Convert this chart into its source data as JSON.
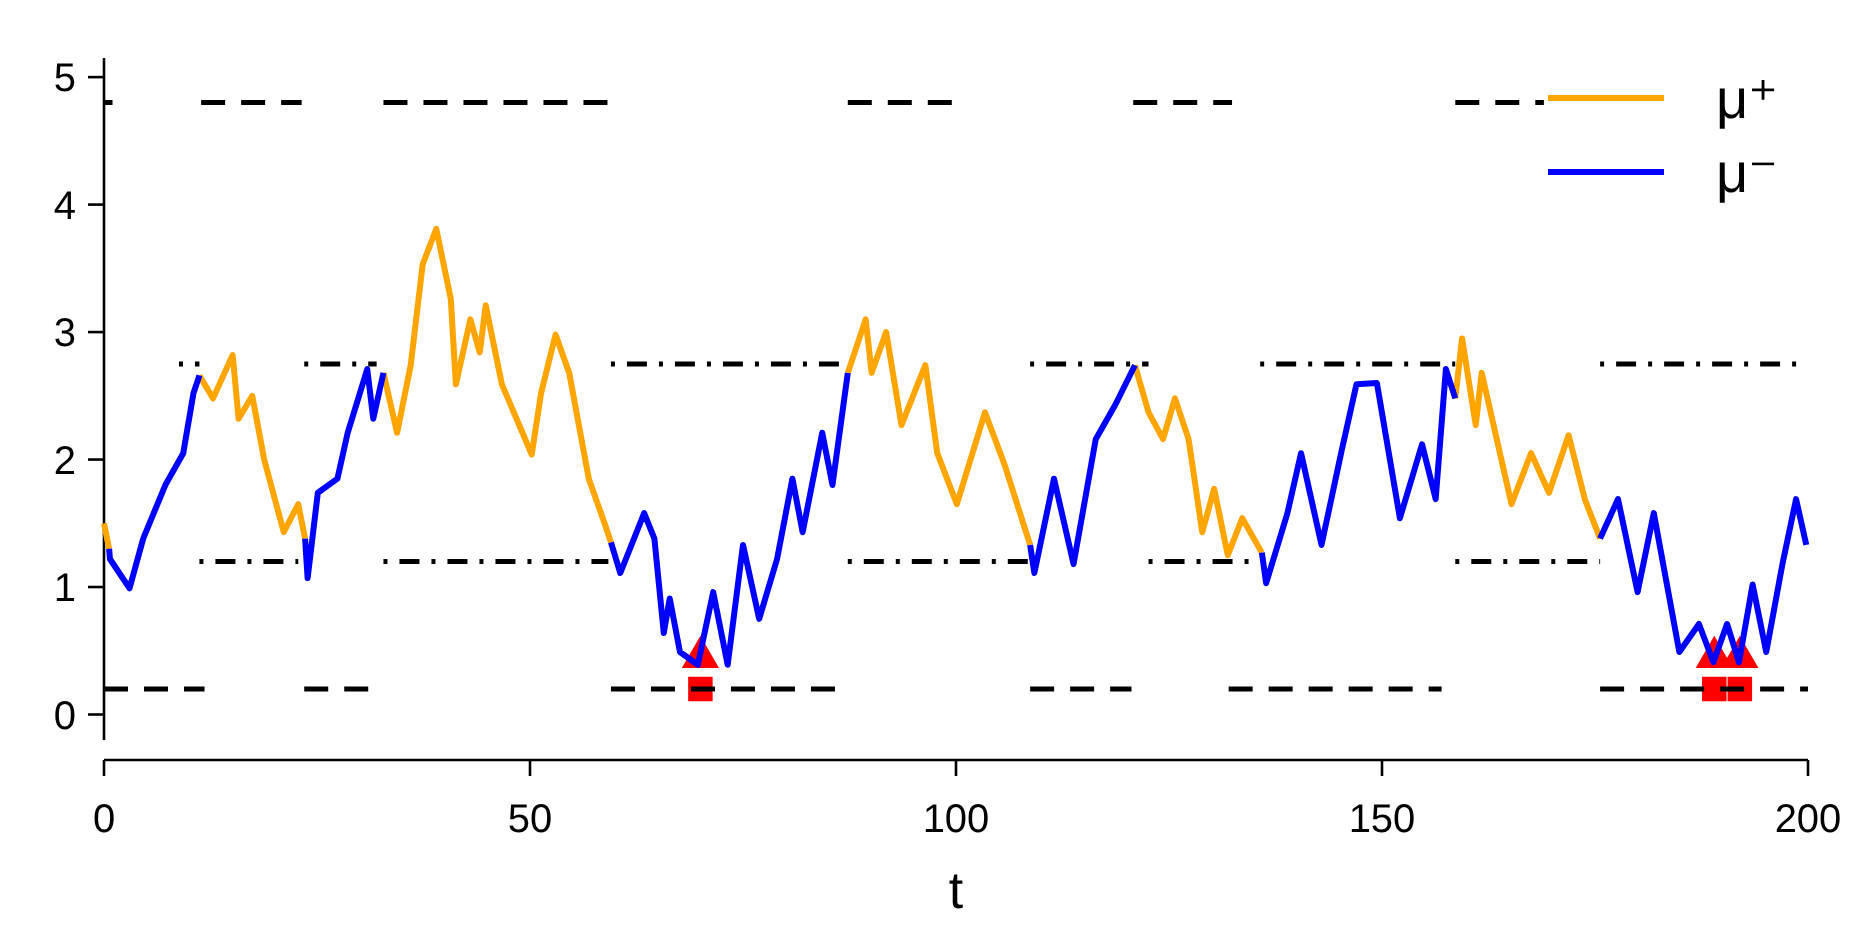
{
  "chart_data": {
    "type": "line",
    "xlabel": "t",
    "xlim": [
      0,
      200
    ],
    "xticks": [
      0,
      50,
      100,
      150,
      200
    ],
    "ylim": [
      -0.2,
      5.15
    ],
    "yticks": [
      0,
      1,
      2,
      3,
      4,
      5
    ],
    "grid": false,
    "legend": "top right",
    "line_style": "solid",
    "marker": "none",
    "series": [
      {
        "name": "μ⁺",
        "color": "#ffa500",
        "x": [
          0,
          0.6,
          1,
          11.2,
          12.8,
          15.1,
          15.8,
          17.4,
          18.8,
          21.1,
          22.8,
          23.6,
          24,
          32.8,
          34.4,
          36,
          37.4,
          39,
          40.7,
          41.3,
          43,
          44.1,
          44.8,
          46.7,
          50.2,
          51.3,
          53,
          54.6,
          56.9,
          58.8,
          59.5,
          60,
          87.3,
          89.4,
          90.1,
          91.8,
          93.6,
          96.4,
          97.8,
          100.1,
          103.4,
          105.7,
          108.7,
          109,
          121,
          122.6,
          124.3,
          125.7,
          127.3,
          128.9,
          130.3,
          131.9,
          133.6,
          135.9,
          136,
          158.6,
          159.4,
          161,
          161.7,
          165.2,
          167.5,
          169.6,
          171.9,
          173.8,
          175.6
        ],
        "values": [
          1.5,
          1.3,
          null,
          2.66,
          2.48,
          2.82,
          2.32,
          2.5,
          2.0,
          1.43,
          1.65,
          1.38,
          null,
          2.68,
          2.21,
          2.74,
          3.53,
          3.81,
          3.26,
          2.59,
          3.1,
          2.84,
          3.21,
          2.59,
          2.04,
          2.52,
          2.98,
          2.68,
          1.85,
          1.49,
          1.35,
          null,
          2.68,
          3.1,
          2.68,
          3.0,
          2.27,
          2.74,
          2.05,
          1.65,
          2.37,
          1.96,
          1.33,
          null,
          2.74,
          2.37,
          2.16,
          2.48,
          2.16,
          1.43,
          1.77,
          1.25,
          1.54,
          1.27,
          null,
          2.48,
          2.95,
          2.27,
          2.68,
          1.65,
          2.05,
          1.74,
          2.19,
          1.69,
          1.38
        ]
      },
      {
        "name": "μ⁻",
        "color": "#0000ff",
        "x": [
          0.6,
          0.7,
          3,
          4.6,
          7.2,
          9.3,
          10.5,
          11.2,
          11.5,
          23.6,
          23.9,
          25.1,
          27.4,
          28.6,
          30.9,
          31.6,
          32.8,
          33,
          59.5,
          60.6,
          63.4,
          64.6,
          65.7,
          66.4,
          67.6,
          69.7,
          71.5,
          73.2,
          75,
          76.9,
          79,
          80.8,
          82,
          84.3,
          85.5,
          87.3,
          88,
          108.7,
          109.2,
          111.5,
          113.8,
          116.4,
          118.7,
          121,
          122,
          135.9,
          136.4,
          138.9,
          140.5,
          142.9,
          145.2,
          147,
          149.4,
          152.1,
          154.7,
          156.3,
          157.5,
          158.6,
          159,
          175.6,
          177.7,
          180,
          181.9,
          184.9,
          187.2,
          188.9,
          190.5,
          191.9,
          193.5,
          195.1,
          197,
          198.6,
          199.8
        ],
        "values": [
          1.3,
          1.22,
          0.99,
          1.38,
          1.8,
          2.05,
          2.52,
          2.66,
          null,
          1.38,
          1.07,
          1.74,
          1.85,
          2.21,
          2.71,
          2.32,
          2.68,
          null,
          1.35,
          1.11,
          1.58,
          1.38,
          0.64,
          0.91,
          0.49,
          0.39,
          0.96,
          0.39,
          1.33,
          0.75,
          1.22,
          1.85,
          1.43,
          2.21,
          1.8,
          2.68,
          null,
          1.33,
          1.11,
          1.85,
          1.18,
          2.16,
          2.43,
          2.74,
          null,
          1.27,
          1.03,
          1.58,
          2.05,
          1.33,
          2.05,
          2.59,
          2.6,
          1.54,
          2.12,
          1.69,
          2.71,
          2.48,
          null,
          1.38,
          1.69,
          0.96,
          1.58,
          0.49,
          0.71,
          0.41,
          0.71,
          0.41,
          1.02,
          0.49,
          1.18,
          1.69,
          1.33
        ]
      },
      {
        "color": "#000000",
        "line_style": "dashed",
        "x": [
          0,
          1,
          1.5,
          11.4,
          23.2,
          23.5,
          32.8,
          59.2,
          60,
          87.3,
          100.6,
          101,
          120.8,
          132.4,
          133,
          158.6,
          169
        ],
        "values": [
          4.8,
          4.8,
          null,
          4.8,
          4.8,
          null,
          4.8,
          4.8,
          null,
          4.8,
          4.8,
          null,
          4.8,
          4.8,
          null,
          4.8,
          4.8
        ]
      },
      {
        "color": "#000000",
        "line_style": "dashed",
        "x": [
          0,
          11.8,
          12,
          23.5,
          31.1,
          31.5,
          59.5,
          86,
          87,
          108.7,
          120.6,
          121,
          132,
          157,
          158,
          175.6,
          200
        ],
        "values": [
          0.2,
          0.2,
          null,
          0.2,
          0.2,
          null,
          0.2,
          0.2,
          null,
          0.2,
          0.2,
          null,
          0.2,
          0.2,
          null,
          0.2,
          0.2
        ]
      },
      {
        "color": "#000000",
        "line_style": "dashdot",
        "x": [
          8.8,
          11.2,
          12,
          23.5,
          32,
          33,
          59.5,
          87.3,
          88,
          108.7,
          122.6,
          123,
          135.7,
          158.6,
          159,
          175.6,
          200
        ],
        "values": [
          2.75,
          2.75,
          null,
          2.75,
          2.75,
          null,
          2.75,
          2.75,
          null,
          2.75,
          2.75,
          null,
          2.75,
          2.75,
          null,
          2.75,
          2.75
        ]
      },
      {
        "color": "#000000",
        "line_style": "dashdot",
        "x": [
          11.2,
          22.8,
          23,
          32.8,
          59.2,
          60,
          87.3,
          108.7,
          109,
          122.6,
          135.7,
          136,
          158.6,
          175.6
        ],
        "values": [
          1.2,
          1.2,
          null,
          1.2,
          1.2,
          null,
          1.2,
          1.2,
          null,
          1.2,
          1.2,
          null,
          1.2,
          1.2
        ]
      },
      {
        "type": "scatter",
        "marker": "triangle",
        "color": "#ff0000",
        "x": [
          70,
          189,
          192
        ],
        "values": [
          0.45,
          0.45,
          0.45
        ]
      },
      {
        "type": "scatter",
        "marker": "square",
        "color": "#ff0000",
        "x": [
          70,
          189,
          192
        ],
        "values": [
          0.2,
          0.2,
          0.2
        ]
      }
    ]
  }
}
